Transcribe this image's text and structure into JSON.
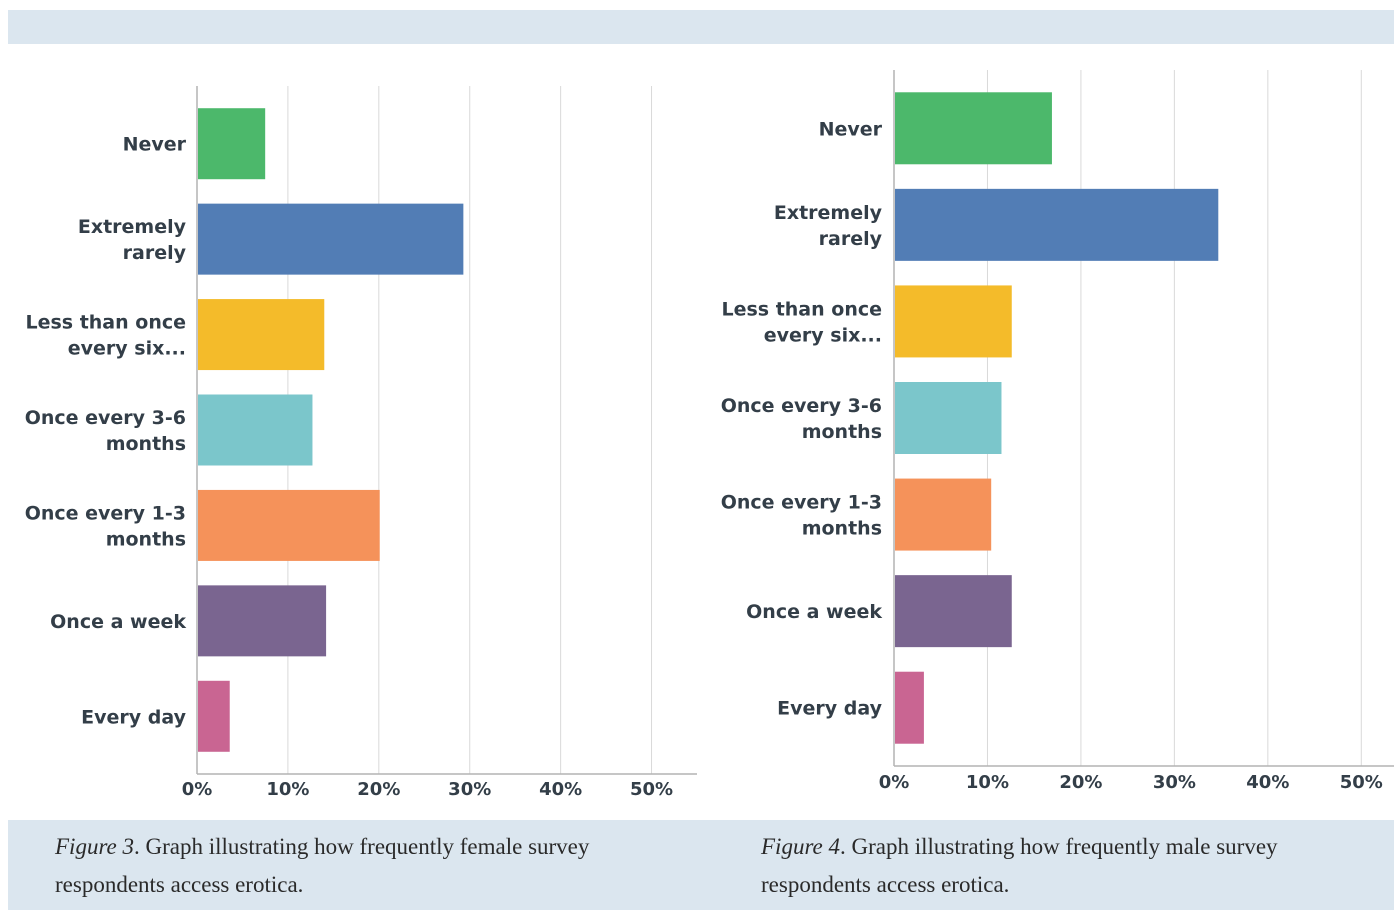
{
  "captions": [
    {
      "figure": "Figure 3",
      "text": ". Graph illustrating how frequently female survey respondents access erotica."
    },
    {
      "figure": "Figure 4",
      "text": ". Graph illustrating how frequently male survey respondents access erotica."
    }
  ],
  "colors": {
    "page_band": "#dbe6ef",
    "grid": "#d9d9d9",
    "axis": "#b3b3b3",
    "label": "#333e48",
    "bars": [
      "#4cb86b",
      "#527db5",
      "#f4bb2a",
      "#7bc6cb",
      "#f5925a",
      "#7a6590",
      "#c96592"
    ]
  },
  "chart_data": [
    {
      "type": "bar",
      "orientation": "horizontal",
      "categories": [
        [
          "Never"
        ],
        [
          "Extremely",
          "rarely"
        ],
        [
          "Less than once",
          "every six..."
        ],
        [
          "Once every 3-6",
          "months"
        ],
        [
          "Once every 1-3",
          "months"
        ],
        [
          "Once a week"
        ],
        [
          "Every day"
        ]
      ],
      "values": [
        7.5,
        29.3,
        14.0,
        12.7,
        20.1,
        14.2,
        3.6
      ],
      "xlim": [
        0,
        55
      ],
      "ticks": [
        0,
        10,
        20,
        30,
        40,
        50
      ],
      "tick_labels": [
        "0%",
        "10%",
        "20%",
        "30%",
        "40%",
        "50%"
      ],
      "grid": true
    },
    {
      "type": "bar",
      "orientation": "horizontal",
      "categories": [
        [
          "Never"
        ],
        [
          "Extremely",
          "rarely"
        ],
        [
          "Less than once",
          "every six..."
        ],
        [
          "Once every 3-6",
          "months"
        ],
        [
          "Once every 1-3",
          "months"
        ],
        [
          "Once a week"
        ],
        [
          "Every day"
        ]
      ],
      "values": [
        16.9,
        34.7,
        12.6,
        11.5,
        10.4,
        12.6,
        3.2
      ],
      "xlim": [
        0,
        53.5
      ],
      "ticks": [
        0,
        10,
        20,
        30,
        40,
        50
      ],
      "tick_labels": [
        "0%",
        "10%",
        "20%",
        "30%",
        "40%",
        "50%"
      ],
      "grid": true
    }
  ]
}
